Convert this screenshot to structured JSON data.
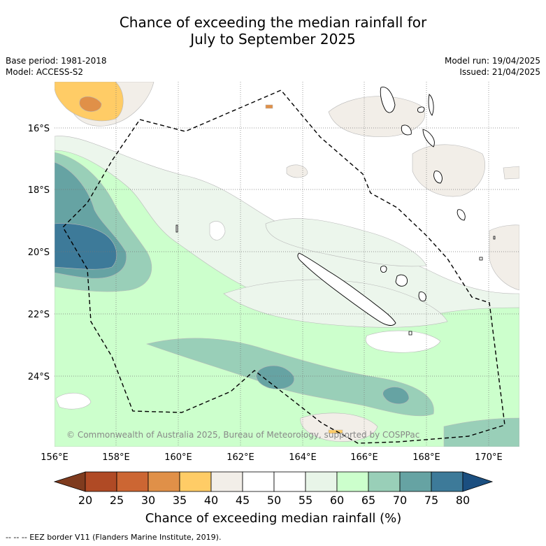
{
  "title_line1": "Chance of exceeding the median rainfall for",
  "title_line2": "July to September 2025",
  "base_period": "Base period: 1981-2018",
  "model": "Model: ACCESS-S2",
  "model_run": "Model run: 19/04/2025",
  "issued": "Issued: 21/04/2025",
  "copyright": "© Commonwealth of Australia 2025, Bureau of Meteorology, supported by COSPPac",
  "lon_labels": [
    "156°E",
    "158°E",
    "160°E",
    "162°E",
    "164°E",
    "166°E",
    "168°E",
    "170°E"
  ],
  "lat_labels": [
    "16°S",
    "18°S",
    "20°S",
    "22°S",
    "24°S"
  ],
  "colorbar": {
    "title": "Chance of exceeding median rainfall (%)",
    "ticks": [
      "20",
      "25",
      "30",
      "35",
      "40",
      "45",
      "50",
      "55",
      "60",
      "65",
      "70",
      "75",
      "80"
    ],
    "colors": [
      "#7f3b1e",
      "#b04a25",
      "#cc6633",
      "#e09048",
      "#ffcc66",
      "#f2eee8",
      "#ffffff",
      "#ffffff",
      "#e8f5e8",
      "#ccffcc",
      "#99cfb8",
      "#66a3a3",
      "#3d7a99",
      "#1b4f80"
    ]
  },
  "footer": "--  --  -- EEZ border V11 (Flanders Marine Institute, 2019)."
}
